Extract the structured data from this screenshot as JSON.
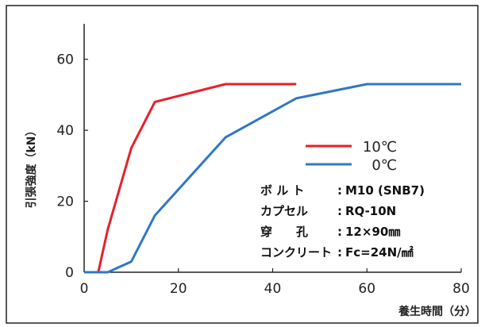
{
  "chart_data": {
    "type": "line",
    "xlabel": "養生時間（分）",
    "ylabel": "引張強度（kN）",
    "xlim": [
      0,
      80
    ],
    "ylim": [
      0,
      70
    ],
    "xticks": [
      0,
      20,
      40,
      60,
      80
    ],
    "yticks": [
      0,
      20,
      40,
      60
    ],
    "grid": false,
    "legend_position": "right",
    "series": [
      {
        "name": "10℃",
        "color": "#e8202a",
        "x": [
          0,
          3,
          5,
          10,
          15,
          30,
          45
        ],
        "y": [
          0,
          0,
          12,
          35,
          48,
          53,
          53
        ]
      },
      {
        "name": "0℃",
        "color": "#2f78c4",
        "x": [
          0,
          5,
          10,
          15,
          30,
          45,
          60,
          80
        ],
        "y": [
          0,
          0,
          3,
          16,
          38,
          49,
          53,
          53
        ]
      }
    ],
    "annotations": [
      {
        "label": "ボ ル ト",
        "value": "M10 (SNB7)"
      },
      {
        "label": "カプセル",
        "value": "RQ-10N"
      },
      {
        "label": "穿　　孔",
        "value": "12×90㎜"
      },
      {
        "label": "コンクリート",
        "value": "Fc=24N/㎟"
      }
    ]
  }
}
